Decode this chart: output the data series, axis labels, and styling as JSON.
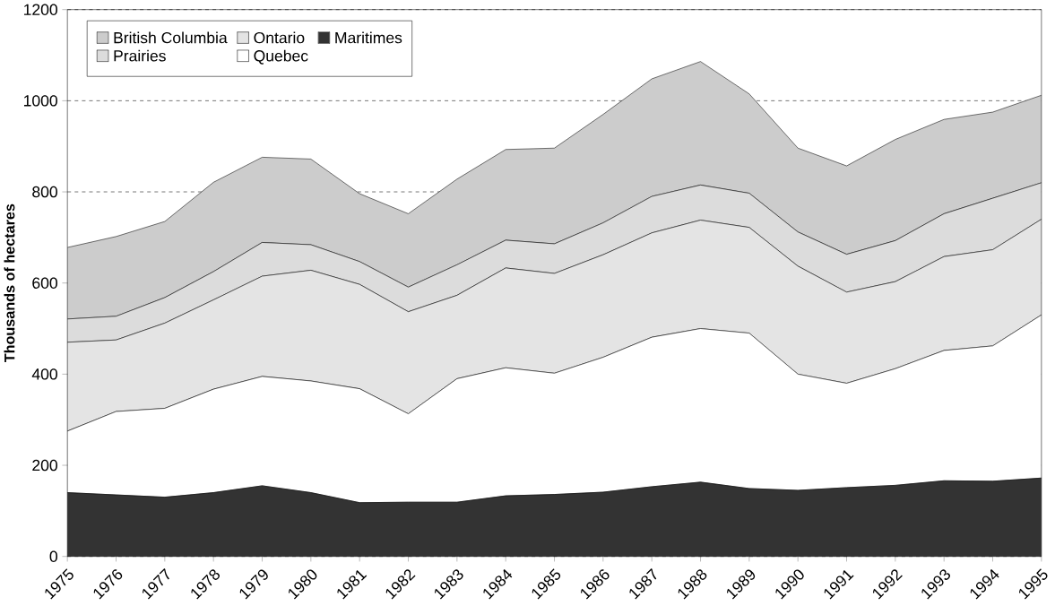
{
  "chart_data": {
    "type": "area",
    "stacked": true,
    "ylabel": "Thousands of hectares",
    "categories": [
      "1975",
      "1976",
      "1977",
      "1978",
      "1979",
      "1980",
      "1981",
      "1982",
      "1983",
      "1984",
      "1985",
      "1986",
      "1987",
      "1988",
      "1989",
      "1990",
      "1991",
      "1992",
      "1993",
      "1994",
      "1995"
    ],
    "series": [
      {
        "name": "Maritimes",
        "color": "#333333",
        "values": [
          140,
          135,
          130,
          140,
          155,
          140,
          118,
          119,
          119,
          133,
          136,
          141,
          153,
          163,
          149,
          145,
          151,
          156,
          166,
          165,
          172
        ]
      },
      {
        "name": "Quebec",
        "color": "#ffffff",
        "values": [
          135,
          183,
          195,
          227,
          240,
          245,
          250,
          194,
          271,
          281,
          266,
          296,
          328,
          337,
          341,
          255,
          229,
          256,
          286,
          297,
          358
        ]
      },
      {
        "name": "Ontario",
        "color": "#e4e4e4",
        "values": [
          195,
          157,
          187,
          196,
          220,
          243,
          229,
          224,
          183,
          219,
          219,
          225,
          229,
          238,
          232,
          237,
          200,
          191,
          206,
          211,
          210
        ]
      },
      {
        "name": "Prairies",
        "color": "#dcdcdc",
        "values": [
          51,
          52,
          56,
          62,
          74,
          56,
          50,
          54,
          67,
          61,
          65,
          70,
          80,
          77,
          75,
          75,
          83,
          90,
          94,
          113,
          80
        ]
      },
      {
        "name": "British Columbia",
        "color": "#cccccc",
        "values": [
          157,
          175,
          167,
          196,
          187,
          188,
          149,
          161,
          188,
          199,
          210,
          238,
          258,
          271,
          218,
          184,
          194,
          222,
          207,
          189,
          192
        ]
      }
    ],
    "ylim": [
      0,
      1200
    ],
    "yticks": [
      0,
      200,
      400,
      600,
      800,
      1000,
      1200
    ],
    "grid": "y",
    "legend": "top left"
  }
}
